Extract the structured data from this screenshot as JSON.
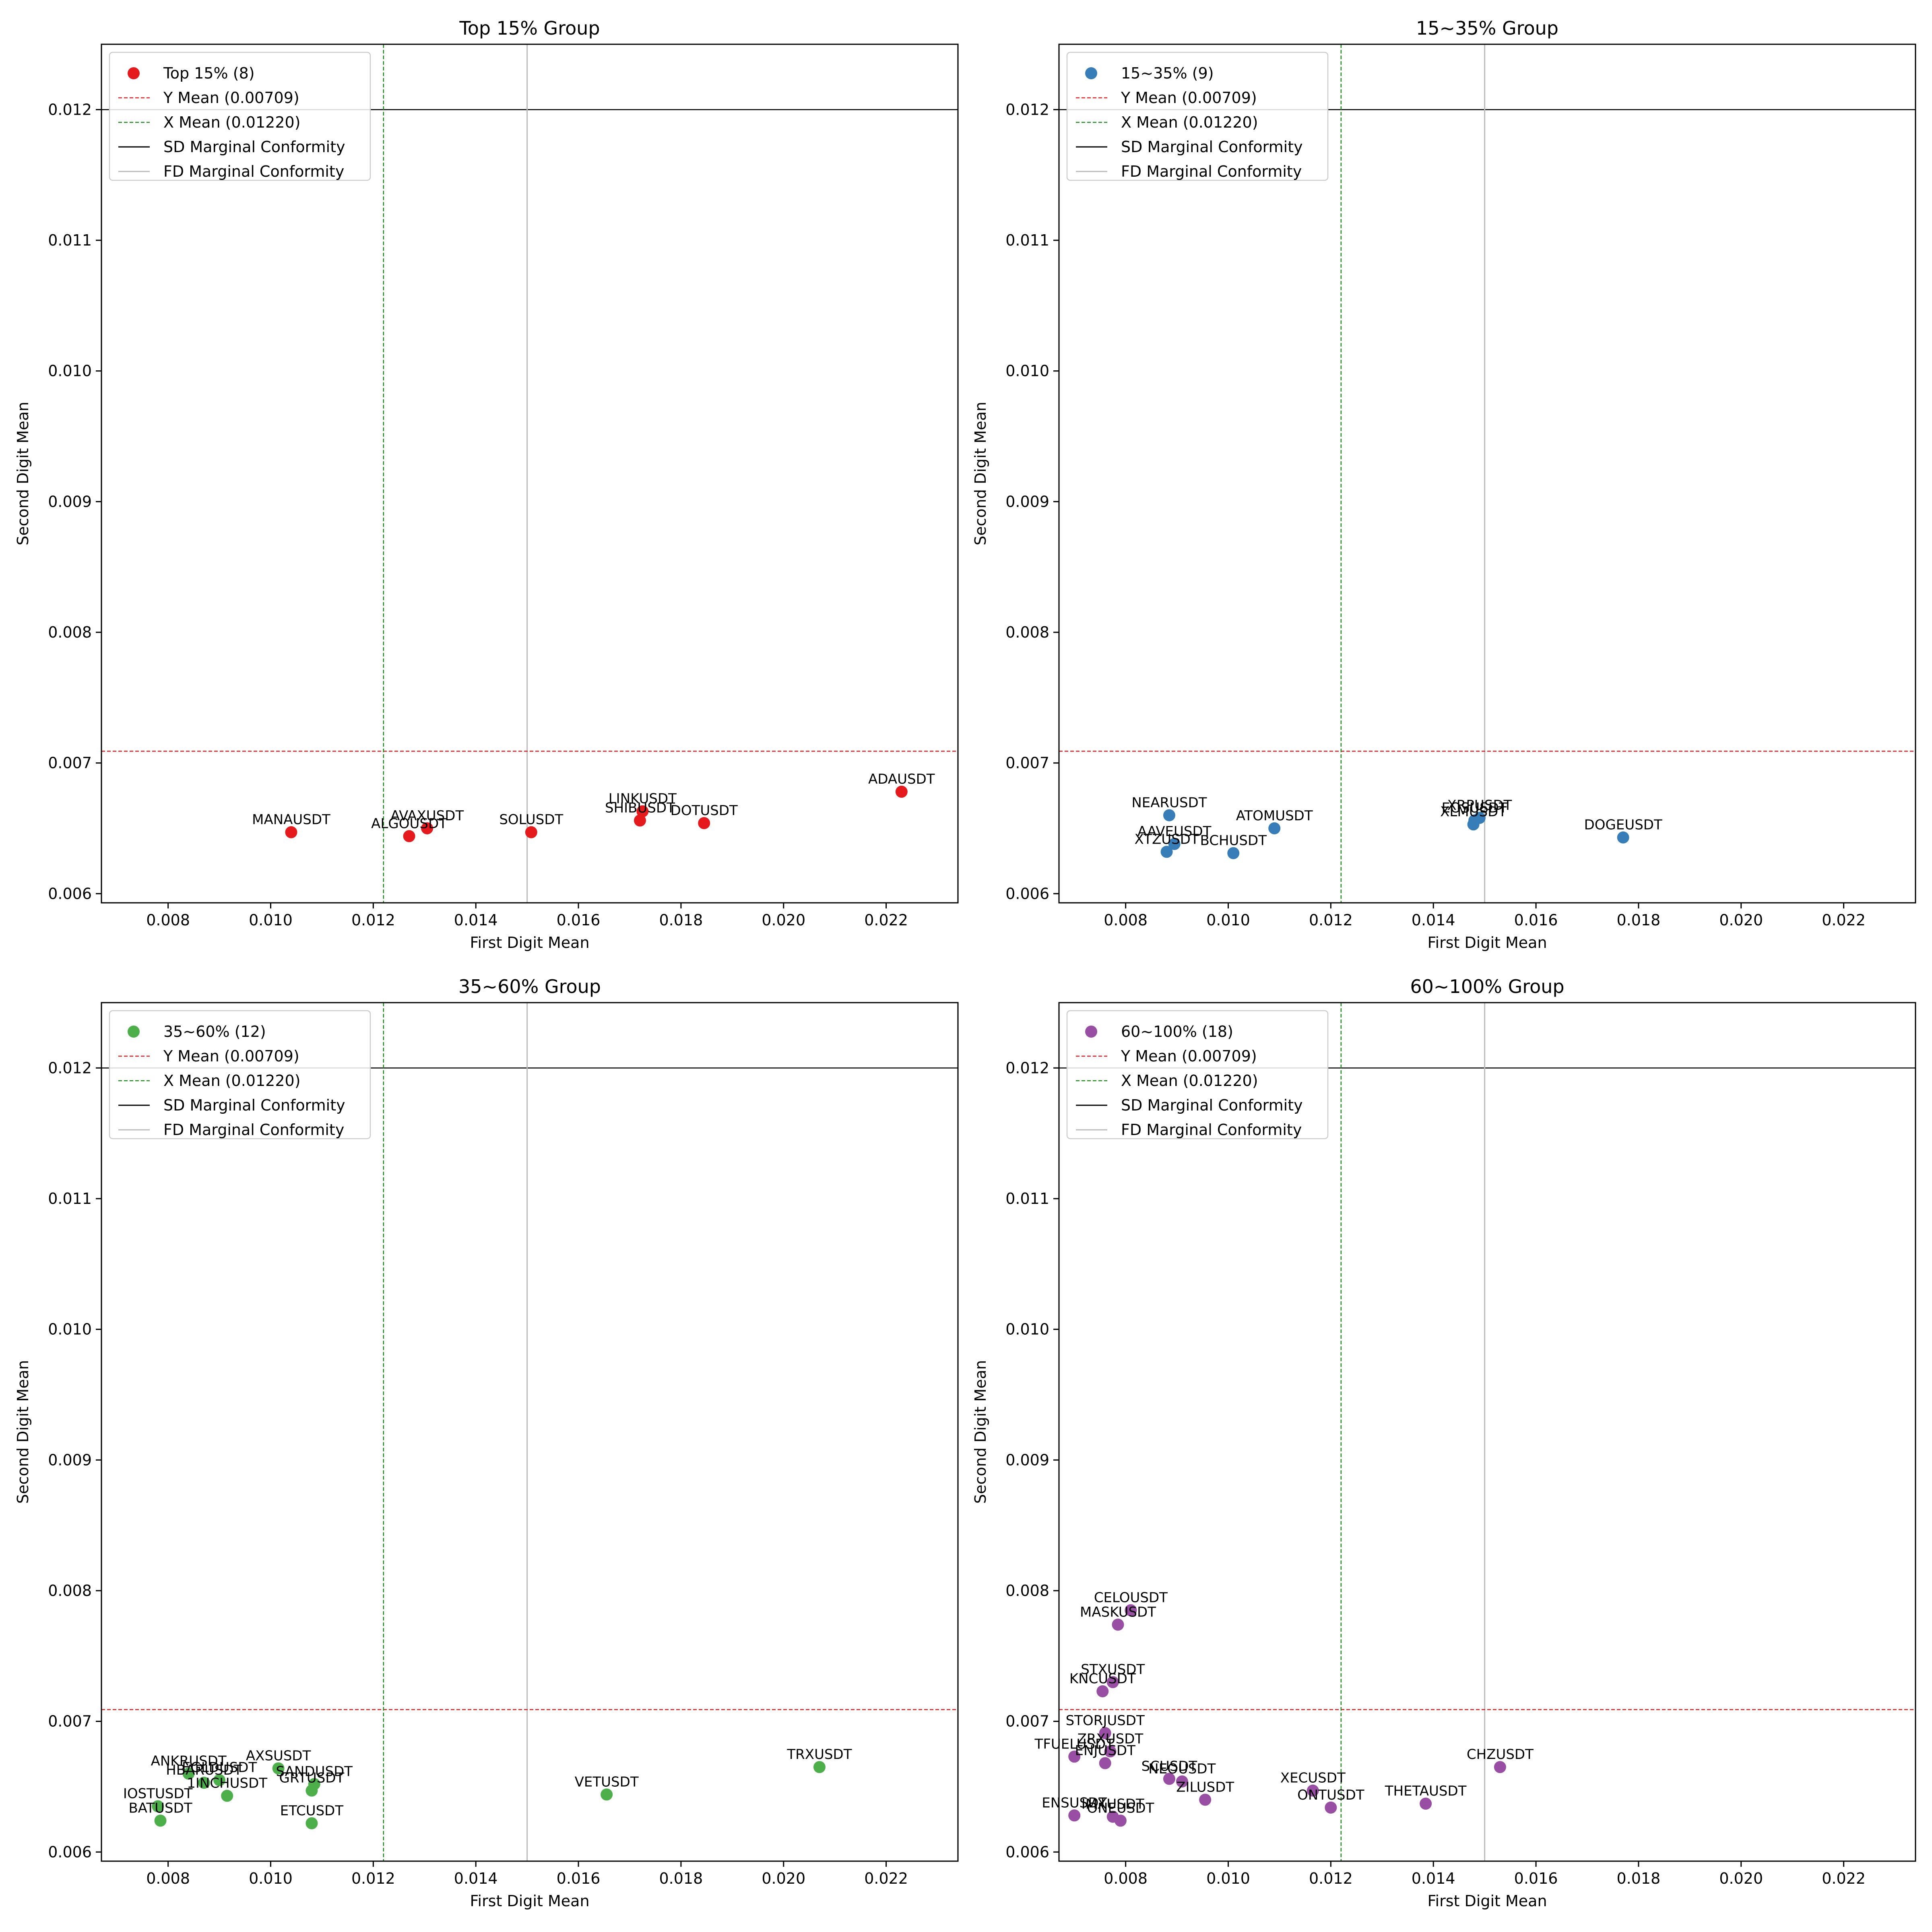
{
  "chart_data": [
    {
      "type": "scatter",
      "title": "Top 15% Group",
      "xlabel": "First Digit Mean",
      "ylabel": "Second Digit Mean",
      "xlim": [
        0.0067,
        0.0234
      ],
      "ylim": [
        0.00593,
        0.0125
      ],
      "xticks": [
        "0.008",
        "0.010",
        "0.012",
        "0.014",
        "0.016",
        "0.018",
        "0.020",
        "0.022"
      ],
      "yticks": [
        "0.006",
        "0.007",
        "0.008",
        "0.009",
        "0.010",
        "0.011",
        "0.012"
      ],
      "grid": false,
      "legend_position": "top-left",
      "color": "#e41a1c",
      "series_label": "Top 15% (8)",
      "y_mean": 0.00709,
      "x_mean": 0.0122,
      "y_mean_label": "Y Mean (0.00709)",
      "x_mean_label": "X Mean (0.01220)",
      "sd_conformity": 0.012,
      "sd_label": "SD Marginal Conformity",
      "fd_conformity": 0.015,
      "fd_label": "FD Marginal Conformity",
      "points": [
        {
          "label": "MANAUSDT",
          "x": 0.0104,
          "y": 0.00647
        },
        {
          "label": "ALGOUSDT",
          "x": 0.0127,
          "y": 0.00644
        },
        {
          "label": "AVAXUSDT",
          "x": 0.01305,
          "y": 0.0065
        },
        {
          "label": "SOLUSDT",
          "x": 0.01508,
          "y": 0.00647
        },
        {
          "label": "SHIBUSDT",
          "x": 0.0172,
          "y": 0.00656
        },
        {
          "label": "LINKUSDT",
          "x": 0.01725,
          "y": 0.00663
        },
        {
          "label": "DOTUSDT",
          "x": 0.01845,
          "y": 0.00654
        },
        {
          "label": "ADAUSDT",
          "x": 0.0223,
          "y": 0.00678
        }
      ]
    },
    {
      "type": "scatter",
      "title": "15~35% Group",
      "xlabel": "First Digit Mean",
      "ylabel": "Second Digit Mean",
      "xlim": [
        0.0067,
        0.0234
      ],
      "ylim": [
        0.00593,
        0.0125
      ],
      "xticks": [
        "0.008",
        "0.010",
        "0.012",
        "0.014",
        "0.016",
        "0.018",
        "0.020",
        "0.022"
      ],
      "yticks": [
        "0.006",
        "0.007",
        "0.008",
        "0.009",
        "0.010",
        "0.011",
        "0.012"
      ],
      "grid": false,
      "legend_position": "top-left",
      "color": "#377eb8",
      "series_label": "15~35% (9)",
      "y_mean": 0.00709,
      "x_mean": 0.0122,
      "y_mean_label": "Y Mean (0.00709)",
      "x_mean_label": "X Mean (0.01220)",
      "sd_conformity": 0.012,
      "sd_label": "SD Marginal Conformity",
      "fd_conformity": 0.015,
      "fd_label": "FD Marginal Conformity",
      "points": [
        {
          "label": "NEARUSDT",
          "x": 0.00885,
          "y": 0.0066
        },
        {
          "label": "AAVEUSDT",
          "x": 0.00895,
          "y": 0.00638
        },
        {
          "label": "XTZUSDT",
          "x": 0.0088,
          "y": 0.00632
        },
        {
          "label": "BCHUSDT",
          "x": 0.0101,
          "y": 0.00631
        },
        {
          "label": "ATOMUSDT",
          "x": 0.0109,
          "y": 0.0065
        },
        {
          "label": "EOSUSDT",
          "x": 0.0148,
          "y": 0.00656
        },
        {
          "label": "XRPUSDT",
          "x": 0.0149,
          "y": 0.00658
        },
        {
          "label": "XLMUSDT",
          "x": 0.01478,
          "y": 0.00653
        },
        {
          "label": "DOGEUSDT",
          "x": 0.0177,
          "y": 0.00643
        }
      ]
    },
    {
      "type": "scatter",
      "title": "35~60% Group",
      "xlabel": "First Digit Mean",
      "ylabel": "Second Digit Mean",
      "xlim": [
        0.0067,
        0.0234
      ],
      "ylim": [
        0.00593,
        0.0125
      ],
      "xticks": [
        "0.008",
        "0.010",
        "0.012",
        "0.014",
        "0.016",
        "0.018",
        "0.020",
        "0.022"
      ],
      "yticks": [
        "0.006",
        "0.007",
        "0.008",
        "0.009",
        "0.010",
        "0.011",
        "0.012"
      ],
      "grid": false,
      "legend_position": "top-left",
      "color": "#4daf4a",
      "series_label": "35~60% (12)",
      "y_mean": 0.00709,
      "x_mean": 0.0122,
      "y_mean_label": "Y Mean (0.00709)",
      "x_mean_label": "X Mean (0.01220)",
      "sd_conformity": 0.012,
      "sd_label": "SD Marginal Conformity",
      "fd_conformity": 0.015,
      "fd_label": "FD Marginal Conformity",
      "points": [
        {
          "label": "IOSTUSDT",
          "x": 0.0078,
          "y": 0.00635
        },
        {
          "label": "BATUSDT",
          "x": 0.00785,
          "y": 0.00624
        },
        {
          "label": "ANKRUSDT",
          "x": 0.0084,
          "y": 0.0066
        },
        {
          "label": "HBARUSDT",
          "x": 0.0087,
          "y": 0.00653
        },
        {
          "label": "EGLDUSDT",
          "x": 0.009,
          "y": 0.00655
        },
        {
          "label": "1INCHUSDT",
          "x": 0.00915,
          "y": 0.00643
        },
        {
          "label": "AXSUSDT",
          "x": 0.01015,
          "y": 0.00664
        },
        {
          "label": "GRTUSDT",
          "x": 0.0108,
          "y": 0.00647
        },
        {
          "label": "SANDUSDT",
          "x": 0.01085,
          "y": 0.00652
        },
        {
          "label": "ETCUSDT",
          "x": 0.0108,
          "y": 0.00622
        },
        {
          "label": "VETUSDT",
          "x": 0.01655,
          "y": 0.00644
        },
        {
          "label": "TRXUSDT",
          "x": 0.0207,
          "y": 0.00665
        }
      ]
    },
    {
      "type": "scatter",
      "title": "60~100% Group",
      "xlabel": "First Digit Mean",
      "ylabel": "Second Digit Mean",
      "xlim": [
        0.0067,
        0.0234
      ],
      "ylim": [
        0.00593,
        0.0125
      ],
      "xticks": [
        "0.008",
        "0.010",
        "0.012",
        "0.014",
        "0.016",
        "0.018",
        "0.020",
        "0.022"
      ],
      "yticks": [
        "0.006",
        "0.007",
        "0.008",
        "0.009",
        "0.010",
        "0.011",
        "0.012"
      ],
      "grid": false,
      "legend_position": "top-left",
      "color": "#984ea3",
      "series_label": "60~100% (18)",
      "y_mean": 0.00709,
      "x_mean": 0.0122,
      "y_mean_label": "Y Mean (0.00709)",
      "x_mean_label": "X Mean (0.01220)",
      "sd_conformity": 0.012,
      "sd_label": "SD Marginal Conformity",
      "fd_conformity": 0.015,
      "fd_label": "FD Marginal Conformity",
      "points": [
        {
          "label": "CELOUSDT",
          "x": 0.0081,
          "y": 0.00785
        },
        {
          "label": "MASKUSDT",
          "x": 0.00785,
          "y": 0.00774
        },
        {
          "label": "STXUSDT",
          "x": 0.00775,
          "y": 0.0073
        },
        {
          "label": "KNCUSDT",
          "x": 0.00755,
          "y": 0.00723
        },
        {
          "label": "STORJUSDT",
          "x": 0.0076,
          "y": 0.00691
        },
        {
          "label": "TFUELUSDT",
          "x": 0.007,
          "y": 0.00673
        },
        {
          "label": "ZRXUSDT",
          "x": 0.0077,
          "y": 0.00677
        },
        {
          "label": "ENJUSDT",
          "x": 0.0076,
          "y": 0.00668
        },
        {
          "label": "SCUSDT",
          "x": 0.00885,
          "y": 0.00656
        },
        {
          "label": "NEOUSDT",
          "x": 0.0091,
          "y": 0.00654
        },
        {
          "label": "ZILUSDT",
          "x": 0.00955,
          "y": 0.0064
        },
        {
          "label": "ENSUSDT",
          "x": 0.007,
          "y": 0.00628
        },
        {
          "label": "IMXUSDT",
          "x": 0.00775,
          "y": 0.00627
        },
        {
          "label": "ONEUSDT",
          "x": 0.0079,
          "y": 0.00624
        },
        {
          "label": "XECUSDT",
          "x": 0.01165,
          "y": 0.00647
        },
        {
          "label": "ONTUSDT",
          "x": 0.012,
          "y": 0.00634
        },
        {
          "label": "THETAUSDT",
          "x": 0.01385,
          "y": 0.00637
        },
        {
          "label": "CHZUSDT",
          "x": 0.0153,
          "y": 0.00665
        }
      ]
    }
  ]
}
